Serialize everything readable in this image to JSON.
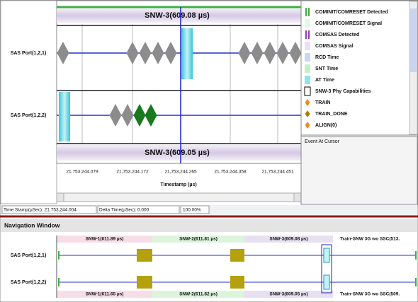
{
  "main": {
    "top_banner": "SNW-3(609.08 µs)",
    "bottom_banner": "SNW-3(609.05 µs)",
    "rows": [
      "SAS Port(1,2,1)",
      "SAS Port(1,2,2)"
    ],
    "timestamps": [
      "21,753,244.079",
      "21,753,244.172",
      "21,753,244.265",
      "21,753,244.358",
      "21,753,244.451"
    ],
    "axis_label": "Timestamp (µs)"
  },
  "legend": {
    "items": [
      "COMINIT/COMRESET Detected",
      "COMINIT/COMRESET Signal",
      "COMSAS Detected",
      "COMSAS Signal",
      "RCD Time",
      "SNT Time",
      "AT Time",
      "SNW-3 Phy Capabilities",
      "TRAIN",
      "TRAIN_DONE",
      "ALIGN(0)"
    ],
    "event_panel": "Event At Cursor"
  },
  "status_bar": {
    "time_stamp": "Time Stamp(µSec): 21,753,244.004",
    "delta_time": "Delta Time(µSec): 0.000",
    "zoom": "100.00%"
  },
  "navigation": {
    "title": "Navigation Window",
    "rows": [
      "SAS Port(1,2,1)",
      "SAS Port(1,2,2)"
    ],
    "top_labels": [
      "SNW-1(611.89 µs)",
      "SNW-2(611.81 µs)",
      "SNW-3(609.08 µs)",
      "Train-SNW 3G wo SSC(513."
    ],
    "bottom_labels": [
      "SNW-1(611.65 µs)",
      "SNW-2(611.82 µs)",
      "SNW-3(609.05 µs)",
      "Train-SNW 3G wo SSC(509."
    ]
  }
}
